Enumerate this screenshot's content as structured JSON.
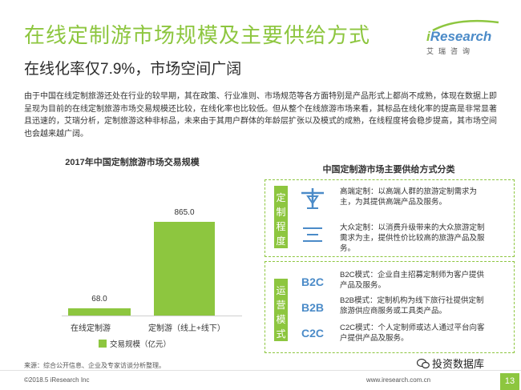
{
  "header": {
    "title": "在线定制游市场规模及主要供给方式",
    "subtitle": "在线化率仅7.9%，市场空间广阔"
  },
  "logo": {
    "brand_i": "i",
    "brand_rest": "Research",
    "cn": "艾瑞咨询"
  },
  "body_text": "由于中国在线定制旅游还处在行业的较早期，其在政策、行业准则、市场规范等各方面特别是产品形式上都尚不成熟，体现在数据上即呈现为目前的在线定制旅游市场交易规模还比较，在线化率也比较低。但从整个在线旅游市场来看，其标品在线化率的提高是非常显著且迅速的，艾瑞分析，定制旅游这种非标品，未来由于其用户群体的年龄层扩张以及模式的成熟，在线程度将会稳步提高，其市场空间也会越来越广阔。",
  "chart_data": {
    "type": "bar",
    "title": "2017年中国定制旅游市场交易规模",
    "categories": [
      "在线定制游",
      "定制游（线上+线下）"
    ],
    "values": [
      68.0,
      865.0
    ],
    "value_labels": [
      "68.0",
      "865.0"
    ],
    "series": [
      {
        "name": "交易规模（亿元）",
        "values": [
          68.0,
          865.0
        ]
      }
    ],
    "legend": "bottom",
    "ylim": [
      0,
      900
    ],
    "grid": false,
    "color": "#8dc63f"
  },
  "right_panel": {
    "title": "中国定制游市场主要供给方式分类",
    "degree_group": {
      "tag": "定制程度",
      "items": [
        {
          "icon": "scale-icon",
          "text": "高端定制：以高端人群的旅游定制需求为主，为其提供高端产品及服务。"
        },
        {
          "icon": "equals-icon",
          "text": "大众定制：以消费升级带来的大众旅游定制需求为主，提供性价比较高的旅游产品及服务。"
        }
      ]
    },
    "mode_group": {
      "tag": "运营模式",
      "items": [
        {
          "code": "B2C",
          "text": "B2C模式：企业自主招募定制师为客户提供产品及服务。"
        },
        {
          "code": "B2B",
          "text": "B2B模式：定制机构为线下旅行社提供定制旅游供应商服务或工具类产品。"
        },
        {
          "code": "C2C",
          "text": "C2C模式：个人定制师或达人通过平台向客户提供产品及服务。"
        }
      ]
    }
  },
  "footer": {
    "source": "来源：综合公开信息、企业及专家访谈分析整理。",
    "copyright": "©2018.5 iResearch Inc",
    "site": "www.iresearch.com.cn",
    "page": "13",
    "wechat": "投资数据库"
  },
  "colors": {
    "accent": "#8dc63f",
    "blue": "#4b8bc8"
  }
}
